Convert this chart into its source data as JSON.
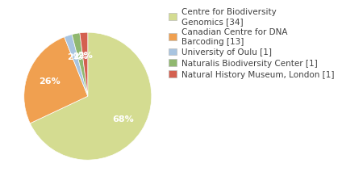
{
  "labels": [
    "Centre for Biodiversity\nGenomics [34]",
    "Canadian Centre for DNA\nBarcoding [13]",
    "University of Oulu [1]",
    "Naturalis Biodiversity Center [1]",
    "Natural History Museum, London [1]"
  ],
  "values": [
    34,
    13,
    1,
    1,
    1
  ],
  "colors": [
    "#d4dc91",
    "#f0a050",
    "#a8c4e0",
    "#90b870",
    "#d46050"
  ],
  "background_color": "#ffffff",
  "text_color": "#404040",
  "legend_fontsize": 7.5,
  "autopct_fontsize": 8
}
